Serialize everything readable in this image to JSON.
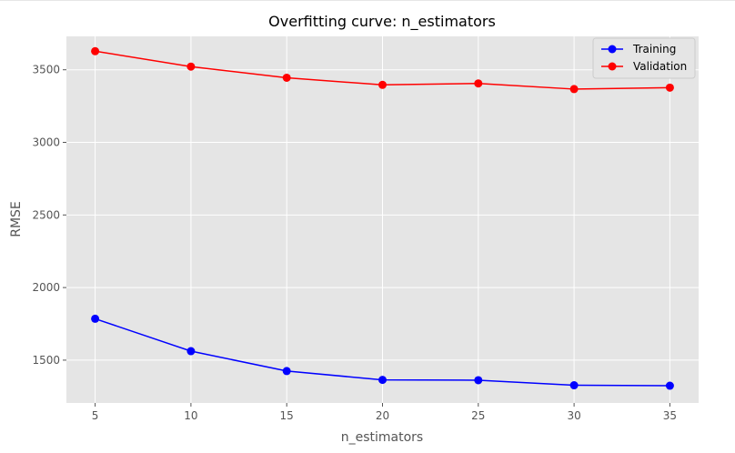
{
  "chart_data": {
    "type": "line",
    "title": "Overfitting curve: n_estimators",
    "xlabel": "n_estimators",
    "ylabel": "RMSE",
    "x": [
      5,
      10,
      15,
      20,
      25,
      30,
      35
    ],
    "xticks": [
      5,
      10,
      15,
      20,
      25,
      30,
      35
    ],
    "yticks": [
      1500,
      2000,
      2500,
      3000,
      3500
    ],
    "xlim": [
      3.5,
      36.5
    ],
    "ylim": [
      1205,
      3730
    ],
    "grid": true,
    "legend_position": "top-right",
    "series": [
      {
        "name": "Training",
        "color": "#0000ff",
        "marker": "circle",
        "values": [
          1785,
          1562,
          1425,
          1364,
          1362,
          1327,
          1324
        ]
      },
      {
        "name": "Validation",
        "color": "#ff0000",
        "marker": "circle",
        "values": [
          3628,
          3522,
          3445,
          3396,
          3406,
          3367,
          3377
        ]
      }
    ]
  }
}
